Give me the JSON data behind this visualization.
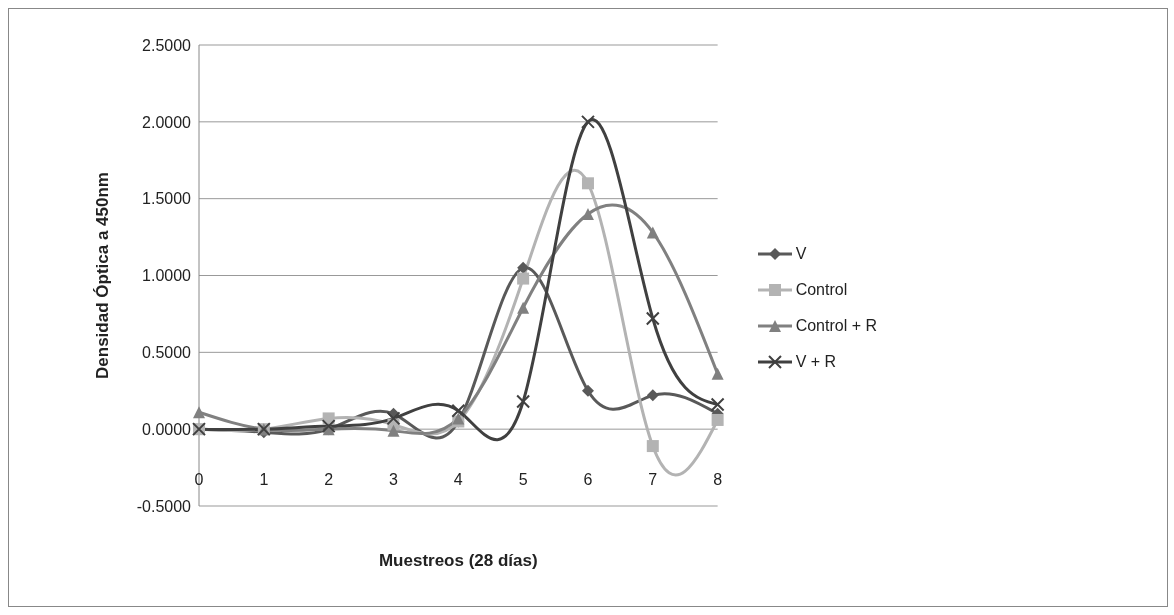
{
  "chart_data": {
    "type": "line",
    "xlabel": "Muestreos (28 días)",
    "ylabel": "Densidad Óptica a 450nm",
    "categories": [
      "0",
      "1",
      "2",
      "3",
      "4",
      "5",
      "6",
      "7",
      "8"
    ],
    "series": [
      {
        "name": "V",
        "color": "#595959",
        "marker": "diamond",
        "values": [
          0,
          -0.02,
          0,
          0.1,
          0.05,
          1.05,
          0.25,
          0.22,
          0.1
        ]
      },
      {
        "name": "Control",
        "color": "#b3b3b3",
        "marker": "square",
        "values": [
          0,
          0,
          0.07,
          0.03,
          0.05,
          0.98,
          1.6,
          -0.11,
          0.06
        ]
      },
      {
        "name": "Control + R",
        "color": "#808080",
        "marker": "triangle",
        "values": [
          0.11,
          0,
          0,
          -0.01,
          0.07,
          0.79,
          1.4,
          1.28,
          0.36
        ]
      },
      {
        "name": "V + R",
        "color": "#404040",
        "marker": "cross",
        "values": [
          0,
          0,
          0.02,
          0.07,
          0.12,
          0.18,
          2.0,
          0.72,
          0.16
        ]
      }
    ],
    "ylim": [
      -0.5,
      2.5
    ],
    "yticks": [
      {
        "value": -0.5,
        "label": "-0.5000"
      },
      {
        "value": 0,
        "label": "0.0000"
      },
      {
        "value": 0.5,
        "label": "0.5000"
      },
      {
        "value": 1,
        "label": "1.0000"
      },
      {
        "value": 1.5,
        "label": "1.5000"
      },
      {
        "value": 2,
        "label": "2.0000"
      },
      {
        "value": 2.5,
        "label": "2.5000"
      }
    ],
    "grid": "y",
    "legend": "right",
    "line_style": "solid"
  }
}
